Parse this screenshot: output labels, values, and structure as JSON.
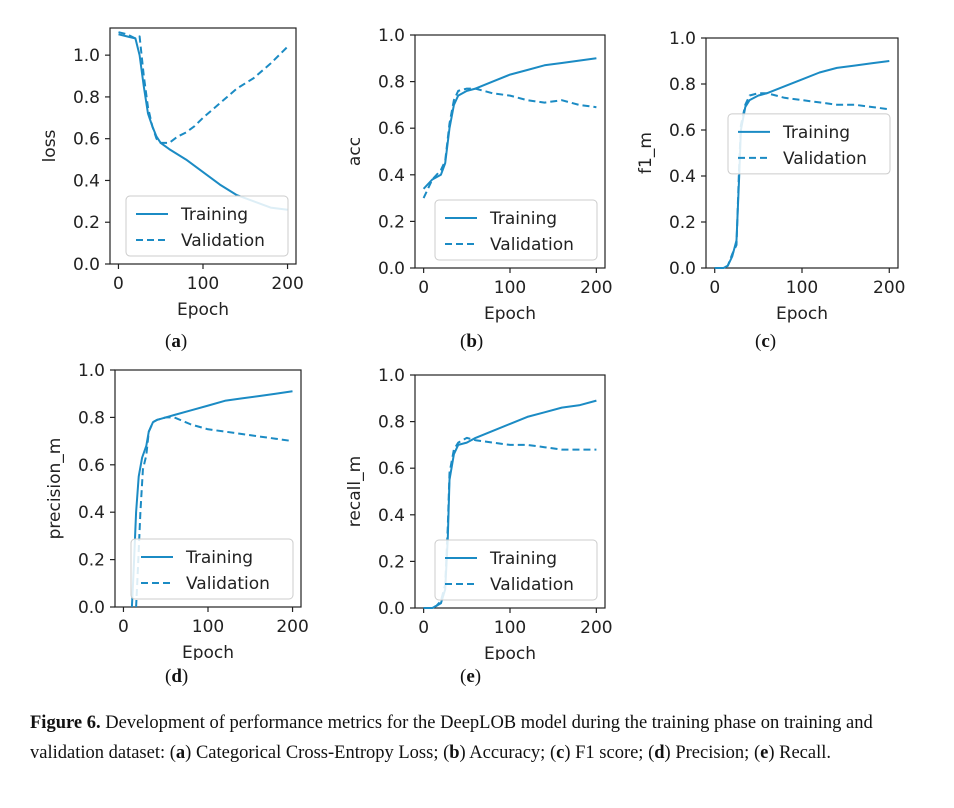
{
  "colors": {
    "line": "#1b8bc4",
    "axis": "#222222",
    "text": "#222222"
  },
  "subfigure_labels": [
    "a",
    "b",
    "c",
    "d",
    "e"
  ],
  "caption": {
    "label": "Figure 6.",
    "parts": [
      {
        "t": " Development of performance metrics for the DeepLOB model during the training phase on training and validation dataset: ("
      },
      {
        "b": "a"
      },
      {
        "t": ") Categorical Cross-Entropy Loss; ("
      },
      {
        "b": "b"
      },
      {
        "t": ") Accuracy; ("
      },
      {
        "b": "c"
      },
      {
        "t": ") F1 score; ("
      },
      {
        "b": "d"
      },
      {
        "t": ") Precision; ("
      },
      {
        "b": "e"
      },
      {
        "t": ") Recall."
      }
    ]
  },
  "chart_data": [
    {
      "type": "line",
      "label": "a",
      "ylabel": "loss",
      "xlabel": "Epoch",
      "xlim": [
        -10,
        210
      ],
      "ylim": [
        0.0,
        1.13
      ],
      "xticks": [
        0,
        100,
        200
      ],
      "yticks": [
        0.0,
        0.2,
        0.4,
        0.6,
        0.8,
        1.0
      ],
      "ytick_labels": [
        "0.0",
        "0.2",
        "0.4",
        "0.6",
        "0.8",
        "1.0"
      ],
      "legend": "lower-right",
      "series": [
        {
          "name": "Training",
          "dash": false,
          "points": [
            [
              0,
              1.1
            ],
            [
              10,
              1.09
            ],
            [
              20,
              1.08
            ],
            [
              25,
              1.0
            ],
            [
              30,
              0.85
            ],
            [
              35,
              0.72
            ],
            [
              40,
              0.66
            ],
            [
              45,
              0.61
            ],
            [
              50,
              0.58
            ],
            [
              60,
              0.55
            ],
            [
              80,
              0.5
            ],
            [
              100,
              0.44
            ],
            [
              120,
              0.38
            ],
            [
              140,
              0.33
            ],
            [
              160,
              0.3
            ],
            [
              180,
              0.27
            ],
            [
              200,
              0.26
            ]
          ]
        },
        {
          "name": "Validation",
          "dash": true,
          "points": [
            [
              0,
              1.11
            ],
            [
              10,
              1.1
            ],
            [
              20,
              1.08
            ],
            [
              25,
              1.09
            ],
            [
              30,
              0.9
            ],
            [
              35,
              0.75
            ],
            [
              40,
              0.66
            ],
            [
              45,
              0.6
            ],
            [
              50,
              0.58
            ],
            [
              60,
              0.58
            ],
            [
              70,
              0.61
            ],
            [
              80,
              0.63
            ],
            [
              90,
              0.66
            ],
            [
              100,
              0.7
            ],
            [
              120,
              0.77
            ],
            [
              140,
              0.84
            ],
            [
              160,
              0.89
            ],
            [
              180,
              0.96
            ],
            [
              200,
              1.04
            ]
          ]
        }
      ]
    },
    {
      "type": "line",
      "label": "b",
      "ylabel": "acc",
      "xlabel": "Epoch",
      "xlim": [
        -10,
        210
      ],
      "ylim": [
        0.0,
        1.0
      ],
      "xticks": [
        0,
        100,
        200
      ],
      "yticks": [
        0.0,
        0.2,
        0.4,
        0.6,
        0.8,
        1.0
      ],
      "ytick_labels": [
        "0.0",
        "0.2",
        "0.4",
        "0.6",
        "0.8",
        "1.0"
      ],
      "legend": "lower-right",
      "series": [
        {
          "name": "Training",
          "dash": false,
          "points": [
            [
              0,
              0.34
            ],
            [
              10,
              0.38
            ],
            [
              20,
              0.4
            ],
            [
              25,
              0.45
            ],
            [
              30,
              0.6
            ],
            [
              35,
              0.7
            ],
            [
              40,
              0.74
            ],
            [
              50,
              0.76
            ],
            [
              60,
              0.77
            ],
            [
              80,
              0.8
            ],
            [
              100,
              0.83
            ],
            [
              120,
              0.85
            ],
            [
              140,
              0.87
            ],
            [
              160,
              0.88
            ],
            [
              180,
              0.89
            ],
            [
              200,
              0.9
            ]
          ]
        },
        {
          "name": "Validation",
          "dash": true,
          "points": [
            [
              0,
              0.3
            ],
            [
              10,
              0.38
            ],
            [
              20,
              0.42
            ],
            [
              25,
              0.46
            ],
            [
              30,
              0.62
            ],
            [
              35,
              0.72
            ],
            [
              40,
              0.76
            ],
            [
              50,
              0.77
            ],
            [
              60,
              0.77
            ],
            [
              80,
              0.75
            ],
            [
              100,
              0.74
            ],
            [
              120,
              0.72
            ],
            [
              140,
              0.71
            ],
            [
              160,
              0.72
            ],
            [
              180,
              0.7
            ],
            [
              200,
              0.69
            ]
          ]
        }
      ]
    },
    {
      "type": "line",
      "label": "c",
      "ylabel": "f1_m",
      "xlabel": "Epoch",
      "xlim": [
        -10,
        210
      ],
      "ylim": [
        0.0,
        1.0
      ],
      "xticks": [
        0,
        100,
        200
      ],
      "yticks": [
        0.0,
        0.2,
        0.4,
        0.6,
        0.8,
        1.0
      ],
      "ytick_labels": [
        "0.0",
        "0.2",
        "0.4",
        "0.6",
        "0.8",
        "1.0"
      ],
      "legend": "right",
      "series": [
        {
          "name": "Training",
          "dash": false,
          "points": [
            [
              0,
              0.0
            ],
            [
              10,
              0.0
            ],
            [
              15,
              0.01
            ],
            [
              20,
              0.05
            ],
            [
              25,
              0.12
            ],
            [
              28,
              0.4
            ],
            [
              30,
              0.6
            ],
            [
              35,
              0.7
            ],
            [
              40,
              0.73
            ],
            [
              50,
              0.75
            ],
            [
              60,
              0.76
            ],
            [
              80,
              0.79
            ],
            [
              100,
              0.82
            ],
            [
              120,
              0.85
            ],
            [
              140,
              0.87
            ],
            [
              160,
              0.88
            ],
            [
              180,
              0.89
            ],
            [
              200,
              0.9
            ]
          ]
        },
        {
          "name": "Validation",
          "dash": true,
          "points": [
            [
              0,
              0.0
            ],
            [
              10,
              0.0
            ],
            [
              15,
              0.01
            ],
            [
              20,
              0.06
            ],
            [
              25,
              0.1
            ],
            [
              28,
              0.45
            ],
            [
              30,
              0.62
            ],
            [
              35,
              0.71
            ],
            [
              40,
              0.75
            ],
            [
              50,
              0.76
            ],
            [
              60,
              0.76
            ],
            [
              80,
              0.74
            ],
            [
              100,
              0.73
            ],
            [
              120,
              0.72
            ],
            [
              140,
              0.71
            ],
            [
              160,
              0.71
            ],
            [
              180,
              0.7
            ],
            [
              200,
              0.69
            ]
          ]
        }
      ]
    },
    {
      "type": "line",
      "label": "d",
      "ylabel": "precision_m",
      "xlabel": "Epoch",
      "xlim": [
        -10,
        210
      ],
      "ylim": [
        0.0,
        1.0
      ],
      "xticks": [
        0,
        100,
        200
      ],
      "yticks": [
        0.0,
        0.2,
        0.4,
        0.6,
        0.8,
        1.0
      ],
      "ytick_labels": [
        "0.0",
        "0.2",
        "0.4",
        "0.6",
        "0.8",
        "1.0"
      ],
      "legend": "lower-right",
      "series": [
        {
          "name": "Training",
          "dash": false,
          "points": [
            [
              10,
              0.0
            ],
            [
              12,
              0.15
            ],
            [
              15,
              0.4
            ],
            [
              18,
              0.55
            ],
            [
              22,
              0.63
            ],
            [
              27,
              0.68
            ],
            [
              30,
              0.74
            ],
            [
              35,
              0.78
            ],
            [
              40,
              0.79
            ],
            [
              50,
              0.8
            ],
            [
              60,
              0.81
            ],
            [
              80,
              0.83
            ],
            [
              100,
              0.85
            ],
            [
              120,
              0.87
            ],
            [
              140,
              0.88
            ],
            [
              160,
              0.89
            ],
            [
              180,
              0.9
            ],
            [
              200,
              0.91
            ]
          ]
        },
        {
          "name": "Validation",
          "dash": true,
          "points": [
            [
              15,
              0.0
            ],
            [
              17,
              0.15
            ],
            [
              20,
              0.4
            ],
            [
              23,
              0.58
            ],
            [
              27,
              0.64
            ],
            [
              30,
              0.74
            ],
            [
              35,
              0.78
            ],
            [
              40,
              0.79
            ],
            [
              50,
              0.8
            ],
            [
              60,
              0.8
            ],
            [
              80,
              0.77
            ],
            [
              100,
              0.75
            ],
            [
              120,
              0.74
            ],
            [
              140,
              0.73
            ],
            [
              160,
              0.72
            ],
            [
              180,
              0.71
            ],
            [
              200,
              0.7
            ]
          ]
        }
      ]
    },
    {
      "type": "line",
      "label": "e",
      "ylabel": "recall_m",
      "xlabel": "Epoch",
      "xlim": [
        -10,
        210
      ],
      "ylim": [
        0.0,
        1.0
      ],
      "xticks": [
        0,
        100,
        200
      ],
      "yticks": [
        0.0,
        0.2,
        0.4,
        0.6,
        0.8,
        1.0
      ],
      "ytick_labels": [
        "0.0",
        "0.2",
        "0.4",
        "0.6",
        "0.8",
        "1.0"
      ],
      "legend": "lower-right",
      "series": [
        {
          "name": "Training",
          "dash": false,
          "points": [
            [
              0,
              0.0
            ],
            [
              10,
              0.0
            ],
            [
              15,
              0.01
            ],
            [
              20,
              0.02
            ],
            [
              25,
              0.08
            ],
            [
              28,
              0.3
            ],
            [
              30,
              0.55
            ],
            [
              35,
              0.66
            ],
            [
              40,
              0.7
            ],
            [
              50,
              0.71
            ],
            [
              60,
              0.73
            ],
            [
              80,
              0.76
            ],
            [
              100,
              0.79
            ],
            [
              120,
              0.82
            ],
            [
              140,
              0.84
            ],
            [
              160,
              0.86
            ],
            [
              180,
              0.87
            ],
            [
              200,
              0.89
            ]
          ]
        },
        {
          "name": "Validation",
          "dash": true,
          "points": [
            [
              0,
              0.0
            ],
            [
              10,
              0.0
            ],
            [
              15,
              0.01
            ],
            [
              20,
              0.03
            ],
            [
              25,
              0.1
            ],
            [
              28,
              0.35
            ],
            [
              30,
              0.58
            ],
            [
              35,
              0.68
            ],
            [
              40,
              0.71
            ],
            [
              50,
              0.73
            ],
            [
              60,
              0.72
            ],
            [
              80,
              0.71
            ],
            [
              100,
              0.7
            ],
            [
              120,
              0.7
            ],
            [
              140,
              0.69
            ],
            [
              160,
              0.68
            ],
            [
              180,
              0.68
            ],
            [
              200,
              0.68
            ]
          ]
        }
      ]
    }
  ]
}
